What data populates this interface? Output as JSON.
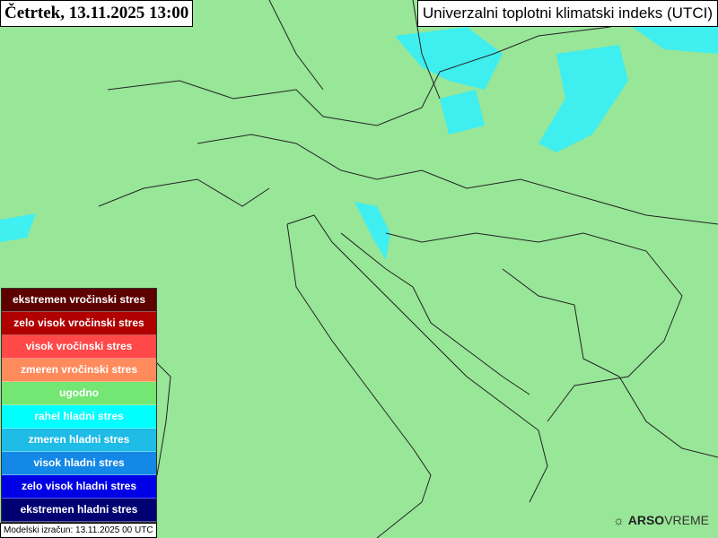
{
  "header": {
    "date_time": "Četrtek, 13.11.2025 13:00",
    "map_title": "Univerzalni toplotni klimatski indeks (UTCI)"
  },
  "legend": [
    {
      "label": "ekstremen vročinski stres",
      "color": "#5c0000"
    },
    {
      "label": "zelo visok vročinski stres",
      "color": "#b00000"
    },
    {
      "label": "visok vročinski stres",
      "color": "#ff4848"
    },
    {
      "label": "zmeren vročinski stres",
      "color": "#ff8a5c"
    },
    {
      "label": "ugodno",
      "color": "#73e673"
    },
    {
      "label": "rahel hladni stres",
      "color": "#00ffff"
    },
    {
      "label": "zmeren hladni stres",
      "color": "#1ebce6"
    },
    {
      "label": "visok hladni stres",
      "color": "#1488e6"
    },
    {
      "label": "zelo visok hladni stres",
      "color": "#0000e6"
    },
    {
      "label": "ekstremen hladni stres",
      "color": "#000073"
    }
  ],
  "footer": {
    "model_run": "Modelski izračun: 13.11.2025 00 UTC",
    "logo_bold": "ARSO",
    "logo_thin": "VREME"
  },
  "map": {
    "background_color": "#98e698",
    "icon": "sun-icon"
  }
}
